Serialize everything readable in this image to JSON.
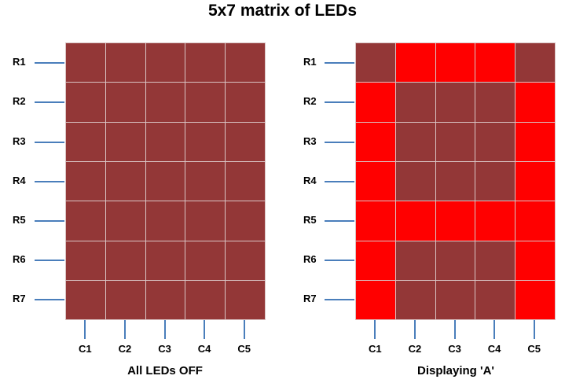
{
  "title": "5x7 matrix of LEDs",
  "rows": [
    "R1",
    "R2",
    "R3",
    "R4",
    "R5",
    "R6",
    "R7"
  ],
  "columns": [
    "C1",
    "C2",
    "C3",
    "C4",
    "C5"
  ],
  "colors": {
    "led_off": "#933737",
    "led_on": "#ff0000",
    "wire": "#4a7ebb",
    "grid_line": "#d9c4c4"
  },
  "matrices": [
    {
      "caption": "All LEDs OFF",
      "pattern": [
        [
          0,
          0,
          0,
          0,
          0
        ],
        [
          0,
          0,
          0,
          0,
          0
        ],
        [
          0,
          0,
          0,
          0,
          0
        ],
        [
          0,
          0,
          0,
          0,
          0
        ],
        [
          0,
          0,
          0,
          0,
          0
        ],
        [
          0,
          0,
          0,
          0,
          0
        ],
        [
          0,
          0,
          0,
          0,
          0
        ]
      ]
    },
    {
      "caption": "Displaying 'A'",
      "pattern": [
        [
          0,
          1,
          1,
          1,
          0
        ],
        [
          1,
          0,
          0,
          0,
          1
        ],
        [
          1,
          0,
          0,
          0,
          1
        ],
        [
          1,
          0,
          0,
          0,
          1
        ],
        [
          1,
          1,
          1,
          1,
          1
        ],
        [
          1,
          0,
          0,
          0,
          1
        ],
        [
          1,
          0,
          0,
          0,
          1
        ]
      ]
    }
  ]
}
